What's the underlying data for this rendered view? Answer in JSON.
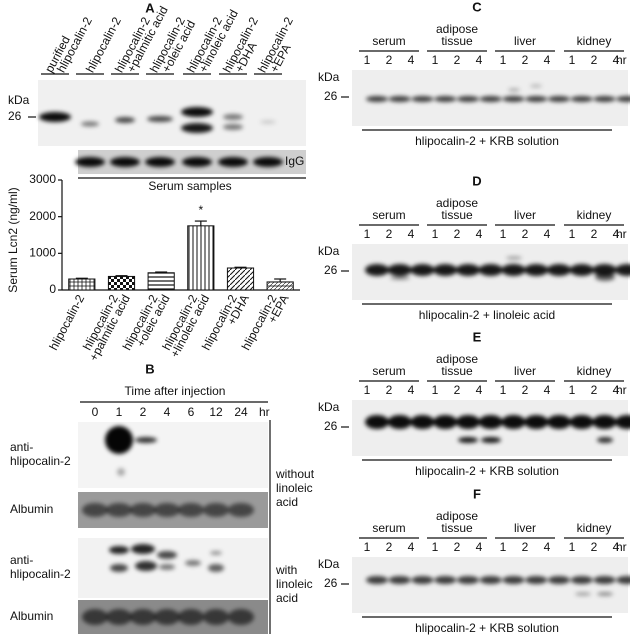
{
  "panel_a": {
    "label": "A",
    "lanes": [
      [
        "purified",
        "hlipocalin-2"
      ],
      [
        "hlipocalin-2"
      ],
      [
        "hlipocalin-2",
        "+palmitic acid"
      ],
      [
        "hlipocalin-2",
        "+oleic acid"
      ],
      [
        "hlipocalin-2",
        "+linoleic acid"
      ],
      [
        "hlipocalin-2",
        "+DHA"
      ],
      [
        "hlipocalin-2",
        "+EPA"
      ]
    ],
    "kda": "kDa",
    "marker": "26",
    "loading": "IgG",
    "group": "Serum samples",
    "chart_data": {
      "type": "bar",
      "ylabel": "Serum Lcn2 (ng/ml)",
      "categories": [
        [
          "hlipocalin-2"
        ],
        [
          "hlipocalin-2",
          "+palmitic acid"
        ],
        [
          "hlipocalin-2",
          "+oleic acid"
        ],
        [
          "hlipocalin-2",
          "+linoleic acid"
        ],
        [
          "hlipocalin-2",
          "+DHA"
        ],
        [
          "hlipocalin-2",
          "+EPA"
        ]
      ],
      "values": [
        300,
        370,
        470,
        1750,
        600,
        220
      ],
      "errors": [
        20,
        20,
        20,
        130,
        20,
        80
      ],
      "ylim": [
        0,
        3000
      ],
      "yticks": [
        0,
        1000,
        2000,
        3000
      ],
      "annotation": "*"
    }
  },
  "panel_b": {
    "label": "B",
    "heading": "Time after injection",
    "times": [
      "0",
      "1",
      "2",
      "4",
      "6",
      "12",
      "24"
    ],
    "unit": "hr",
    "rows": [
      [
        "anti-",
        "hlipocalin-2"
      ],
      [
        "Albumin"
      ],
      [
        "anti-",
        "hlipocalin-2"
      ],
      [
        "Albumin"
      ]
    ],
    "conditions": [
      [
        "without",
        "linoleic",
        "acid"
      ],
      [
        "with",
        "linoleic",
        "acid"
      ]
    ]
  },
  "panels": [
    {
      "label": "C",
      "tissues": [
        [
          "serum"
        ],
        [
          "adipose",
          "tissue"
        ],
        [
          "liver"
        ],
        [
          "kidney"
        ]
      ],
      "times": [
        "1",
        "2",
        "4"
      ],
      "unit": "hr",
      "kda": "kDa",
      "marker": "26",
      "caption": "hlipocalin-2 + KRB solution"
    },
    {
      "label": "D",
      "tissues": [
        [
          "serum"
        ],
        [
          "adipose",
          "tissue"
        ],
        [
          "liver"
        ],
        [
          "kidney"
        ]
      ],
      "times": [
        "1",
        "2",
        "4"
      ],
      "unit": "hr",
      "kda": "kDa",
      "marker": "26",
      "caption": "hlipocalin-2 + linoleic acid"
    },
    {
      "label": "E",
      "tissues": [
        [
          "serum"
        ],
        [
          "adipose",
          "tissue"
        ],
        [
          "liver"
        ],
        [
          "kidney"
        ]
      ],
      "times": [
        "1",
        "2",
        "4"
      ],
      "unit": "hr",
      "kda": "kDa",
      "marker": "26",
      "caption": "hlipocalin-2 + KRB solution"
    },
    {
      "label": "F",
      "tissues": [
        [
          "serum"
        ],
        [
          "adipose",
          "tissue"
        ],
        [
          "liver"
        ],
        [
          "kidney"
        ]
      ],
      "times": [
        "1",
        "2",
        "4"
      ],
      "unit": "hr",
      "kda": "kDa",
      "marker": "26",
      "caption": "hlipocalin-2 + KRB solution"
    }
  ]
}
